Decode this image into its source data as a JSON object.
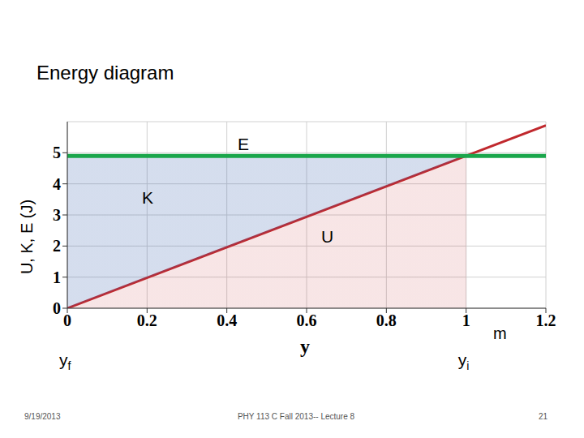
{
  "chart_data": {
    "type": "line",
    "title": "Energy diagram",
    "x_label": "y",
    "y_label": "U, K, E (J)",
    "x": [
      0,
      1,
      1.2
    ],
    "series": [
      {
        "name": "U",
        "type": "area",
        "color": "#c0282d",
        "values": [
          0,
          4.9,
          5.88
        ]
      },
      {
        "name": "K",
        "type": "area",
        "color": "#3f66b0",
        "values": [
          4.9,
          0,
          null
        ]
      },
      {
        "name": "E",
        "type": "line",
        "color": "#1aa64b",
        "values": [
          4.9,
          4.9,
          4.9
        ]
      }
    ],
    "stacked": true,
    "xlim": [
      0,
      1.2
    ],
    "ylim": [
      0,
      6
    ],
    "xticks": [
      0,
      0.2,
      0.4,
      0.6,
      0.8,
      1,
      1.2
    ],
    "yticks": [
      0,
      1,
      2,
      3,
      4,
      5
    ],
    "grid": true,
    "annotations": [
      {
        "text": "m"
      },
      {
        "text": "y",
        "subscript": "f",
        "x": 0
      },
      {
        "text": "y",
        "subscript": "i",
        "x": 1
      }
    ]
  },
  "footer": {
    "date": "9/19/2013",
    "course": "PHY 113 C  Fall 2013-- Lecture 8",
    "page": "21"
  }
}
